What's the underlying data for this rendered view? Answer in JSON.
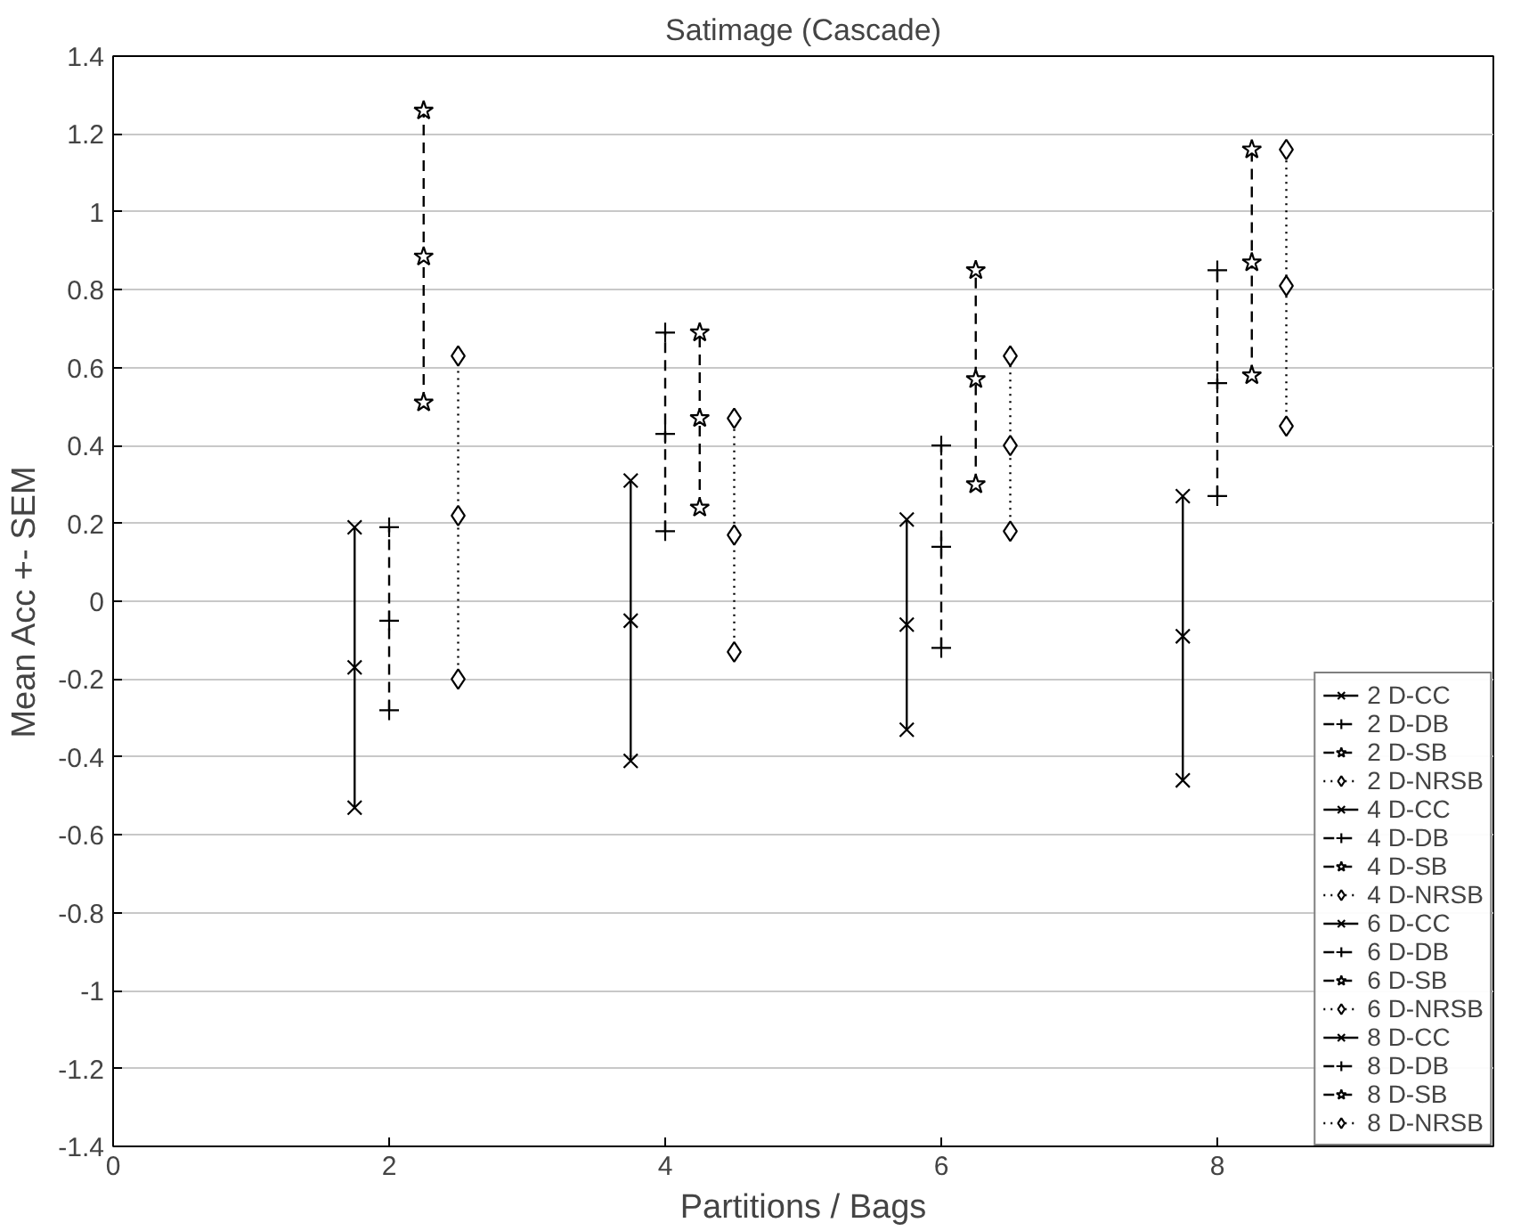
{
  "chart_data": {
    "type": "line",
    "title": "Satimage (Cascade)",
    "xlabel": "Partitions / Bags",
    "ylabel": "Mean Acc +- SEM",
    "xlim": [
      0,
      10
    ],
    "ylim": [
      -1.4,
      1.4
    ],
    "xticks": [
      0,
      2,
      4,
      6,
      8
    ],
    "yticks": [
      -1.4,
      -1.2,
      -1,
      -0.8,
      -0.6,
      -0.4,
      -0.2,
      0,
      0.2,
      0.4,
      0.6,
      0.8,
      1,
      1.2,
      1.4
    ],
    "grid": "y",
    "legend": "bottom right",
    "series": [
      {
        "name": "2 D-CC",
        "color": "#000000",
        "marker": "x",
        "line_style": "solid",
        "x": [
          1.75,
          1.75,
          1.75
        ],
        "values": [
          -0.53,
          -0.17,
          0.19
        ]
      },
      {
        "name": "2 D-DB",
        "color": "#000000",
        "marker": "cross",
        "line_style": "dashed",
        "x": [
          2,
          2,
          2
        ],
        "values": [
          -0.28,
          -0.05,
          0.19
        ]
      },
      {
        "name": "2 D-SB",
        "color": "#000000",
        "marker": "star",
        "line_style": "dashed",
        "x": [
          2.25,
          2.25,
          2.25
        ],
        "values": [
          0.51,
          0.885,
          1.26
        ]
      },
      {
        "name": "2 D-NRSB",
        "color": "#000000",
        "marker": "diamond",
        "line_style": "dotted",
        "x": [
          2.5,
          2.5,
          2.5
        ],
        "values": [
          -0.2,
          0.22,
          0.63
        ]
      },
      {
        "name": "4 D-CC",
        "color": "#000000",
        "marker": "x",
        "line_style": "solid",
        "x": [
          3.75,
          3.75,
          3.75
        ],
        "values": [
          -0.41,
          -0.05,
          0.31
        ]
      },
      {
        "name": "4 D-DB",
        "color": "#000000",
        "marker": "cross",
        "line_style": "dashed",
        "x": [
          4,
          4,
          4
        ],
        "values": [
          0.18,
          0.43,
          0.69
        ]
      },
      {
        "name": "4 D-SB",
        "color": "#000000",
        "marker": "star",
        "line_style": "dashed",
        "x": [
          4.25,
          4.25,
          4.25
        ],
        "values": [
          0.24,
          0.47,
          0.69
        ]
      },
      {
        "name": "4 D-NRSB",
        "color": "#000000",
        "marker": "diamond",
        "line_style": "dotted",
        "x": [
          4.5,
          4.5,
          4.5
        ],
        "values": [
          -0.13,
          0.17,
          0.47
        ]
      },
      {
        "name": "6 D-CC",
        "color": "#000000",
        "marker": "x",
        "line_style": "solid",
        "x": [
          5.75,
          5.75,
          5.75
        ],
        "values": [
          -0.33,
          -0.06,
          0.21
        ]
      },
      {
        "name": "6 D-DB",
        "color": "#000000",
        "marker": "cross",
        "line_style": "dashed",
        "x": [
          6,
          6,
          6
        ],
        "values": [
          -0.12,
          0.14,
          0.4
        ]
      },
      {
        "name": "6 D-SB",
        "color": "#000000",
        "marker": "star",
        "line_style": "dashed",
        "x": [
          6.25,
          6.25,
          6.25
        ],
        "values": [
          0.3,
          0.57,
          0.85
        ]
      },
      {
        "name": "6 D-NRSB",
        "color": "#000000",
        "marker": "diamond",
        "line_style": "dotted",
        "x": [
          6.5,
          6.5,
          6.5
        ],
        "values": [
          0.18,
          0.4,
          0.63
        ]
      },
      {
        "name": "8 D-CC",
        "color": "#000000",
        "marker": "x",
        "line_style": "solid",
        "x": [
          7.75,
          7.75,
          7.75
        ],
        "values": [
          -0.46,
          -0.09,
          0.27
        ]
      },
      {
        "name": "8 D-DB",
        "color": "#000000",
        "marker": "cross",
        "line_style": "dashed",
        "x": [
          8,
          8,
          8
        ],
        "values": [
          0.27,
          0.56,
          0.85
        ]
      },
      {
        "name": "8 D-SB",
        "color": "#000000",
        "marker": "star",
        "line_style": "dashed",
        "x": [
          8.25,
          8.25,
          8.25
        ],
        "values": [
          0.58,
          0.87,
          1.16
        ]
      },
      {
        "name": "8 D-NRSB",
        "color": "#000000",
        "marker": "diamond",
        "line_style": "dotted",
        "x": [
          8.5,
          8.5,
          8.5
        ],
        "values": [
          0.45,
          0.81,
          1.16
        ]
      }
    ]
  }
}
